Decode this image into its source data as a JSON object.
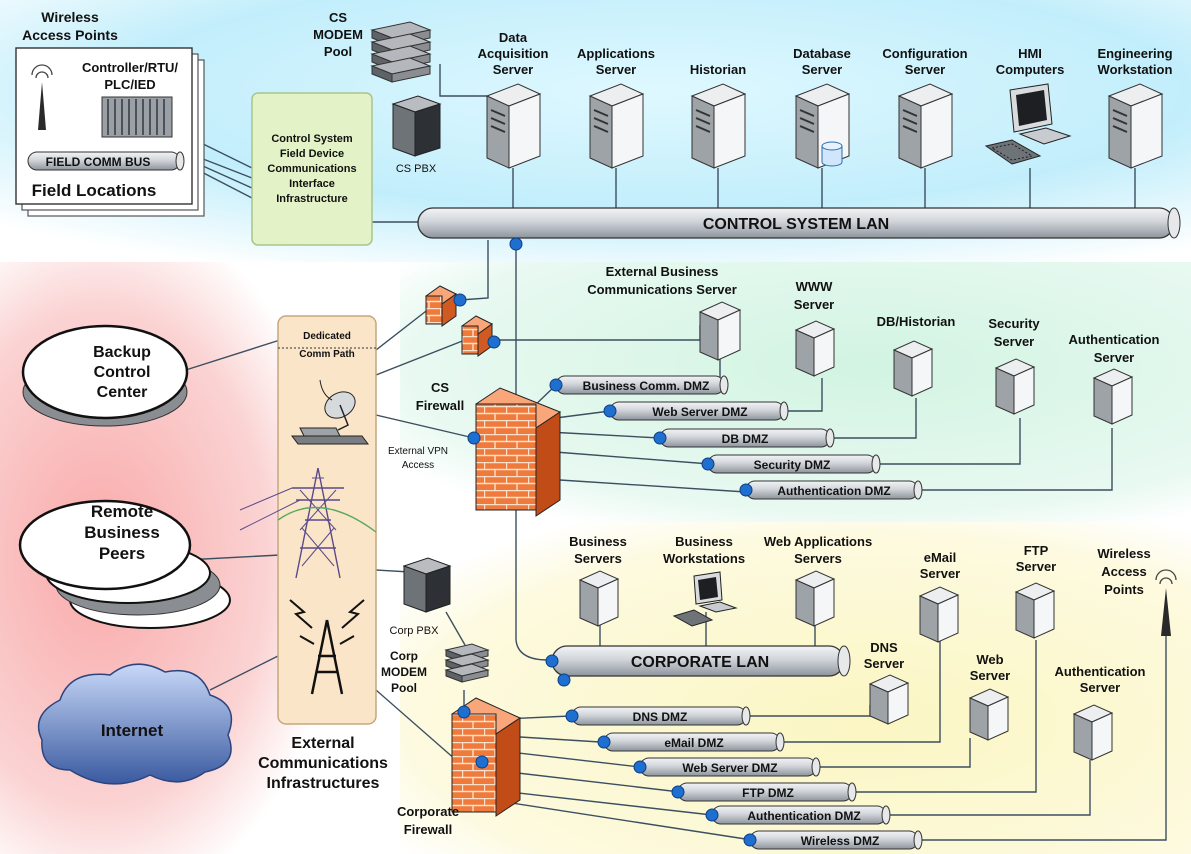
{
  "colors": {
    "control_bg": "#bfeffc",
    "corporate_bg": "#fbf7c8",
    "external_bg": "#f9b4b4",
    "dmz_bg": "#d6f5e4",
    "firewall": "#f07a3c",
    "pipe": "#cfd3d8",
    "connector": "#1f6fd1",
    "infra_box": "#e3f2c7",
    "ext_box": "#fbe5c8"
  },
  "field": {
    "wireless_title_1": "Wireless",
    "wireless_title_2": "Access Points",
    "controller_1": "Controller/RTU/",
    "controller_2": "PLC/IED",
    "comm_bus": "FIELD COMM BUS",
    "locations": "Field Locations"
  },
  "cs_interface": {
    "line1": "Control System",
    "line2": "Field Device",
    "line3": "Communications",
    "line4": "Interface",
    "line5": "Infrastructure"
  },
  "cs_modem": {
    "line1": "CS",
    "line2": "MODEM",
    "line3": "Pool"
  },
  "cs_pbx": "CS PBX",
  "control_servers": [
    {
      "line1": "Data",
      "line2": "Acquisition",
      "line3": "Server"
    },
    {
      "line1": "Applications",
      "line2": "Server",
      "line3": ""
    },
    {
      "line1": "Historian",
      "line2": "",
      "line3": ""
    },
    {
      "line1": "Database",
      "line2": "Server",
      "line3": ""
    },
    {
      "line1": "Configuration",
      "line2": "Server",
      "line3": ""
    },
    {
      "line1": "HMI",
      "line2": "Computers",
      "line3": ""
    },
    {
      "line1": "Engineering",
      "line2": "Workstation",
      "line3": ""
    }
  ],
  "control_lan": "CONTROL SYSTEM LAN",
  "external": {
    "backup_1": "Backup",
    "backup_2": "Control",
    "backup_3": "Center",
    "remote_1": "Remote",
    "remote_2": "Business",
    "remote_3": "Peers",
    "internet": "Internet",
    "dedicated_1": "Dedicated",
    "dedicated_2": "Comm Path",
    "title_1": "External",
    "title_2": "Communications",
    "title_3": "Infrastructures"
  },
  "cs_firewall": {
    "line1": "CS",
    "line2": "Firewall",
    "vpn_1": "External VPN",
    "vpn_2": "Access"
  },
  "dmz_servers": [
    {
      "line1": "External Business",
      "line2": "Communications Server"
    },
    {
      "line1": "WWW",
      "line2": "Server"
    },
    {
      "line1": "DB/Historian",
      "line2": ""
    },
    {
      "line1": "Security",
      "line2": "Server"
    },
    {
      "line1": "Authentication",
      "line2": "Server"
    }
  ],
  "cs_dmz": [
    "Business Comm. DMZ",
    "Web Server DMZ",
    "DB DMZ",
    "Security DMZ",
    "Authentication DMZ"
  ],
  "corp_servers": [
    {
      "line1": "Business",
      "line2": "Servers"
    },
    {
      "line1": "Business",
      "line2": "Workstations"
    },
    {
      "line1": "Web Applications",
      "line2": "Servers"
    }
  ],
  "corp_pbx": "Corp PBX",
  "corp_modem": {
    "line1": "Corp",
    "line2": "MODEM",
    "line3": "Pool"
  },
  "corporate_lan": "CORPORATE LAN",
  "corp_dmz_servers": [
    {
      "line1": "eMail",
      "line2": "Server"
    },
    {
      "line1": "FTP",
      "line2": "Server"
    },
    {
      "line1": "DNS",
      "line2": "Server"
    },
    {
      "line1": "Web",
      "line2": "Server"
    },
    {
      "line1": "Authentication",
      "line2": "Server"
    }
  ],
  "corp_wireless": {
    "line1": "Wireless",
    "line2": "Access",
    "line3": "Points"
  },
  "corp_firewall": {
    "line1": "Corporate",
    "line2": "Firewall"
  },
  "corp_dmz": [
    "DNS DMZ",
    "eMail DMZ",
    "Web Server DMZ",
    "FTP DMZ",
    "Authentication DMZ",
    "Wireless DMZ"
  ]
}
